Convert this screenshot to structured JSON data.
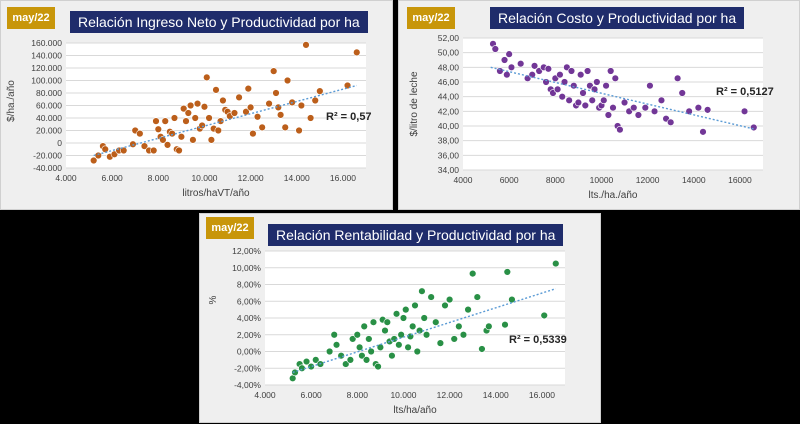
{
  "colors": {
    "background": "#000000",
    "panel": "#efefef",
    "badge": "#c8960a",
    "title_bg": "#1f2c6b",
    "trend": "#5b9bd5",
    "grid": "#d9d9d9"
  },
  "chart_data": [
    {
      "type": "scatter",
      "badge": "may/22",
      "title": "Relación Ingreso Neto y Productividad por ha",
      "xlabel": "litros/haVT/año",
      "ylabel": "$/ha./año",
      "r2_label": "R² = 0,57",
      "xlim": [
        4000,
        17000
      ],
      "ylim": [
        -40000,
        160000
      ],
      "x_ticks": [
        4000,
        6000,
        8000,
        10000,
        12000,
        14000,
        16000
      ],
      "x_tick_labels": [
        "4.000",
        "6.000",
        "8.000",
        "10.000",
        "12.000",
        "14.000",
        "16.000"
      ],
      "y_ticks": [
        -40000,
        -20000,
        0,
        20000,
        40000,
        60000,
        80000,
        100000,
        120000,
        140000,
        160000
      ],
      "y_tick_labels": [
        "-40.000",
        "-20.000",
        "0",
        "20.000",
        "40.000",
        "60.000",
        "80.000",
        "100.000",
        "120.000",
        "140.000",
        "160.000"
      ],
      "point_color": "#b8560f",
      "trend": {
        "x": [
          5200,
          16600
        ],
        "y": [
          -20000,
          92000
        ]
      },
      "points": [
        [
          5200,
          -28000
        ],
        [
          5400,
          -20000
        ],
        [
          5600,
          -5000
        ],
        [
          5700,
          -10000
        ],
        [
          5900,
          -22000
        ],
        [
          6100,
          -18000
        ],
        [
          6300,
          -12000
        ],
        [
          6500,
          -12000
        ],
        [
          6900,
          -2000
        ],
        [
          7000,
          20000
        ],
        [
          7200,
          15000
        ],
        [
          7400,
          -5000
        ],
        [
          7600,
          -12000
        ],
        [
          7800,
          -12000
        ],
        [
          7900,
          35000
        ],
        [
          8000,
          22000
        ],
        [
          8100,
          10000
        ],
        [
          8200,
          5000
        ],
        [
          8300,
          35000
        ],
        [
          8400,
          -3000
        ],
        [
          8500,
          18000
        ],
        [
          8600,
          15000
        ],
        [
          8700,
          40000
        ],
        [
          8800,
          -10000
        ],
        [
          8900,
          -12000
        ],
        [
          9000,
          10000
        ],
        [
          9100,
          55000
        ],
        [
          9200,
          35000
        ],
        [
          9300,
          48000
        ],
        [
          9400,
          60000
        ],
        [
          9500,
          5000
        ],
        [
          9600,
          40000
        ],
        [
          9700,
          63000
        ],
        [
          9800,
          23000
        ],
        [
          9900,
          28000
        ],
        [
          10000,
          58000
        ],
        [
          10100,
          105000
        ],
        [
          10200,
          40000
        ],
        [
          10300,
          5000
        ],
        [
          10400,
          23000
        ],
        [
          10500,
          85000
        ],
        [
          10600,
          20000
        ],
        [
          10700,
          35000
        ],
        [
          10800,
          68000
        ],
        [
          10900,
          53000
        ],
        [
          11000,
          50000
        ],
        [
          11100,
          43000
        ],
        [
          11300,
          48000
        ],
        [
          11500,
          73000
        ],
        [
          11800,
          50000
        ],
        [
          11900,
          87000
        ],
        [
          12000,
          57000
        ],
        [
          12100,
          15000
        ],
        [
          12300,
          42000
        ],
        [
          12500,
          25000
        ],
        [
          12800,
          63000
        ],
        [
          13000,
          115000
        ],
        [
          13100,
          80000
        ],
        [
          13200,
          57000
        ],
        [
          13300,
          45000
        ],
        [
          13500,
          25000
        ],
        [
          13600,
          100000
        ],
        [
          13800,
          65000
        ],
        [
          14100,
          20000
        ],
        [
          14200,
          60000
        ],
        [
          14400,
          157000
        ],
        [
          14600,
          40000
        ],
        [
          14800,
          68000
        ],
        [
          15000,
          83000
        ],
        [
          16200,
          92000
        ],
        [
          16600,
          145000
        ]
      ]
    },
    {
      "type": "scatter",
      "badge": "may/22",
      "title": "Relación Costo y Productividad por ha",
      "xlabel": "lts./ha./año",
      "ylabel": "$/litro de leche",
      "r2_label": "R² = 0,5127",
      "xlim": [
        4000,
        17000
      ],
      "ylim": [
        34,
        52
      ],
      "x_ticks": [
        4000,
        6000,
        8000,
        10000,
        12000,
        14000,
        16000
      ],
      "x_tick_labels": [
        "4000",
        "6000",
        "8000",
        "10000",
        "12000",
        "14000",
        "16000"
      ],
      "y_ticks": [
        34,
        36,
        38,
        40,
        42,
        44,
        46,
        48,
        50,
        52
      ],
      "y_tick_labels": [
        "34,00",
        "36,00",
        "38,00",
        "40,00",
        "42,00",
        "44,00",
        "46,00",
        "48,00",
        "50,00",
        "52,00"
      ],
      "point_color": "#6a2c91",
      "trend": {
        "x": [
          5200,
          16600
        ],
        "y": [
          48.0,
          39.6
        ]
      },
      "points": [
        [
          5300,
          51.2
        ],
        [
          5400,
          50.5
        ],
        [
          5600,
          47.5
        ],
        [
          5800,
          49.0
        ],
        [
          5900,
          47.0
        ],
        [
          6000,
          49.8
        ],
        [
          6100,
          48.0
        ],
        [
          6500,
          48.5
        ],
        [
          6800,
          46.5
        ],
        [
          7000,
          47.0
        ],
        [
          7100,
          48.2
        ],
        [
          7300,
          47.5
        ],
        [
          7500,
          48.0
        ],
        [
          7600,
          46.0
        ],
        [
          7700,
          47.8
        ],
        [
          7800,
          45.0
        ],
        [
          7900,
          44.5
        ],
        [
          8000,
          46.5
        ],
        [
          8100,
          45.0
        ],
        [
          8200,
          47.0
        ],
        [
          8300,
          44.0
        ],
        [
          8400,
          46.0
        ],
        [
          8500,
          48.0
        ],
        [
          8600,
          43.5
        ],
        [
          8700,
          47.5
        ],
        [
          8800,
          45.5
        ],
        [
          8900,
          42.8
        ],
        [
          9000,
          43.2
        ],
        [
          9100,
          47.0
        ],
        [
          9200,
          44.5
        ],
        [
          9300,
          42.8
        ],
        [
          9400,
          47.5
        ],
        [
          9500,
          45.5
        ],
        [
          9600,
          43.5
        ],
        [
          9700,
          45.0
        ],
        [
          9800,
          46.0
        ],
        [
          9900,
          42.5
        ],
        [
          10000,
          42.8
        ],
        [
          10100,
          43.5
        ],
        [
          10200,
          45.5
        ],
        [
          10300,
          41.5
        ],
        [
          10400,
          47.5
        ],
        [
          10500,
          42.5
        ],
        [
          10600,
          46.5
        ],
        [
          10700,
          40.0
        ],
        [
          10800,
          39.5
        ],
        [
          11000,
          43.2
        ],
        [
          11200,
          42.0
        ],
        [
          11400,
          42.5
        ],
        [
          11600,
          41.5
        ],
        [
          11900,
          42.5
        ],
        [
          12100,
          45.5
        ],
        [
          12300,
          42.0
        ],
        [
          12600,
          43.5
        ],
        [
          12800,
          41.0
        ],
        [
          13000,
          40.5
        ],
        [
          13300,
          46.5
        ],
        [
          13500,
          44.5
        ],
        [
          13800,
          42.0
        ],
        [
          14200,
          42.5
        ],
        [
          14400,
          39.2
        ],
        [
          14600,
          42.2
        ],
        [
          16200,
          42.0
        ],
        [
          16600,
          39.8
        ]
      ]
    },
    {
      "type": "scatter",
      "badge": "may/22",
      "title": "Relación Rentabilidad y Productividad por ha",
      "xlabel": "lts/ha/año",
      "ylabel": "%",
      "r2_label": "R² = 0,5339",
      "xlim": [
        4000,
        17000
      ],
      "ylim": [
        -4,
        12
      ],
      "x_ticks": [
        4000,
        6000,
        8000,
        10000,
        12000,
        14000,
        16000
      ],
      "x_tick_labels": [
        "4.000",
        "6.000",
        "8.000",
        "10.000",
        "12.000",
        "14.000",
        "16.000"
      ],
      "y_ticks": [
        -4,
        -2,
        0,
        2,
        4,
        6,
        8,
        10,
        12
      ],
      "y_tick_labels": [
        "-4,00%",
        "-2,00%",
        "0,00%",
        "2,00%",
        "4,00%",
        "6,00%",
        "8,00%",
        "10,00%",
        "12,00%"
      ],
      "point_color": "#1e8a3c",
      "trend": {
        "x": [
          5200,
          16600
        ],
        "y": [
          -2.5,
          7.5
        ]
      },
      "points": [
        [
          5200,
          -3.2
        ],
        [
          5300,
          -2.5
        ],
        [
          5500,
          -1.5
        ],
        [
          5600,
          -2.0
        ],
        [
          5800,
          -1.2
        ],
        [
          6000,
          -1.8
        ],
        [
          6200,
          -1.0
        ],
        [
          6400,
          -1.5
        ],
        [
          6800,
          0.0
        ],
        [
          7000,
          2.0
        ],
        [
          7100,
          0.8
        ],
        [
          7300,
          -0.5
        ],
        [
          7500,
          -1.5
        ],
        [
          7700,
          -1.0
        ],
        [
          7800,
          1.5
        ],
        [
          8000,
          2.0
        ],
        [
          8100,
          0.5
        ],
        [
          8200,
          -0.5
        ],
        [
          8300,
          3.0
        ],
        [
          8400,
          -1.0
        ],
        [
          8500,
          1.5
        ],
        [
          8600,
          0.0
        ],
        [
          8700,
          3.5
        ],
        [
          8800,
          -1.5
        ],
        [
          8900,
          -1.8
        ],
        [
          9000,
          0.5
        ],
        [
          9100,
          3.8
        ],
        [
          9200,
          2.5
        ],
        [
          9300,
          3.5
        ],
        [
          9400,
          1.2
        ],
        [
          9500,
          -0.5
        ],
        [
          9600,
          1.5
        ],
        [
          9700,
          4.5
        ],
        [
          9800,
          0.8
        ],
        [
          9900,
          2.0
        ],
        [
          10000,
          4.0
        ],
        [
          10100,
          5.0
        ],
        [
          10200,
          0.5
        ],
        [
          10300,
          1.8
        ],
        [
          10400,
          3.0
        ],
        [
          10500,
          5.5
        ],
        [
          10600,
          0.0
        ],
        [
          10700,
          2.5
        ],
        [
          10800,
          7.2
        ],
        [
          10900,
          4.0
        ],
        [
          11000,
          2.0
        ],
        [
          11200,
          6.5
        ],
        [
          11400,
          3.5
        ],
        [
          11600,
          1.0
        ],
        [
          11800,
          5.5
        ],
        [
          12000,
          6.2
        ],
        [
          12200,
          1.5
        ],
        [
          12400,
          3.0
        ],
        [
          12600,
          2.0
        ],
        [
          12800,
          5.0
        ],
        [
          13000,
          9.3
        ],
        [
          13200,
          6.5
        ],
        [
          13400,
          0.3
        ],
        [
          13600,
          2.5
        ],
        [
          13700,
          3.0
        ],
        [
          14400,
          3.2
        ],
        [
          14500,
          9.5
        ],
        [
          14700,
          6.2
        ],
        [
          16100,
          4.3
        ],
        [
          16600,
          10.5
        ]
      ]
    }
  ]
}
